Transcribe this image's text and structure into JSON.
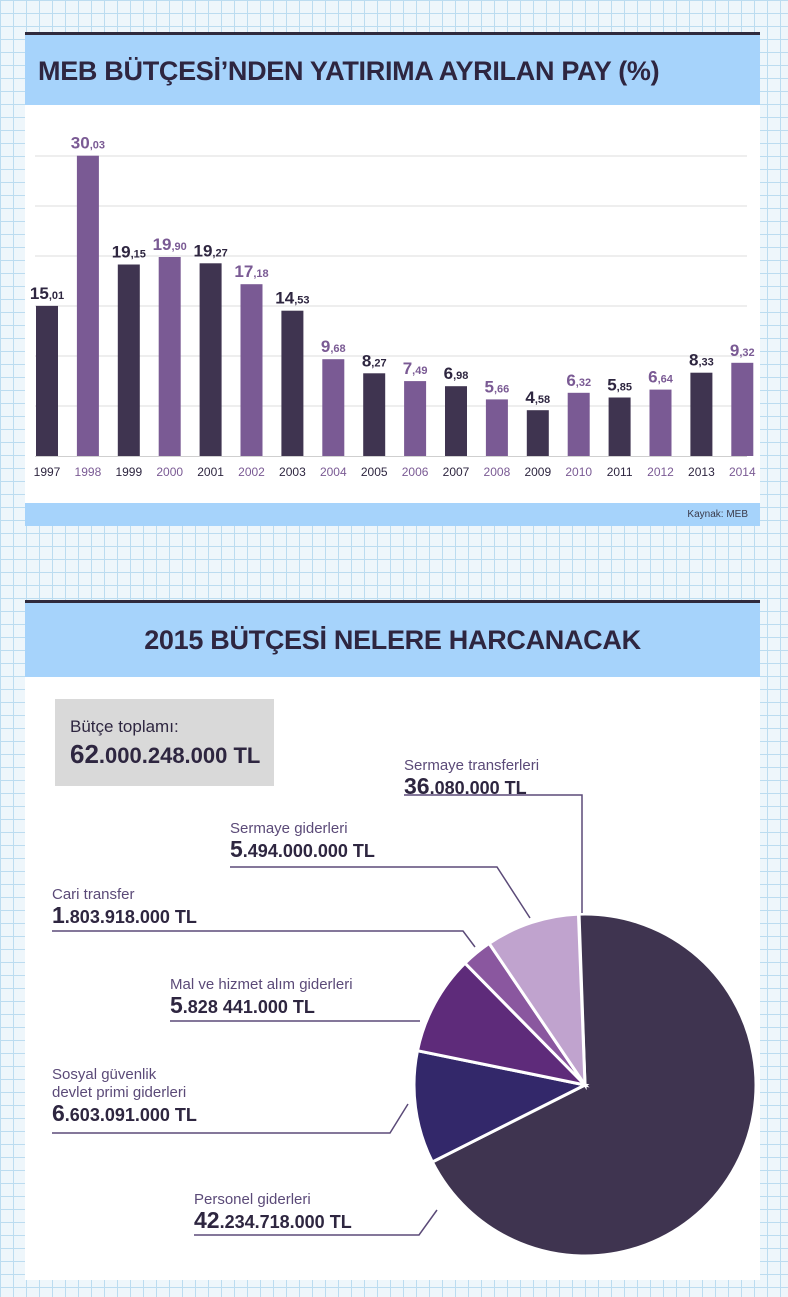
{
  "charts": {
    "bar": {
      "title": "MEB BÜTÇESİ’NDEN YATIRIMA AYRILAN PAY (%)",
      "source": "Kaynak: MEB"
    },
    "pie": {
      "title": "2015 BÜTÇESİ NELERE HARCANACAK",
      "total_label": "Bütçe toplamı:",
      "total_value": "62.000.248.000 TL"
    }
  },
  "chart_data": [
    {
      "type": "bar",
      "title": "MEB BÜTÇESİ’NDEN YATIRIMA AYRILAN PAY (%)",
      "categories": [
        "1997",
        "1998",
        "1999",
        "2000",
        "2001",
        "2002",
        "2003",
        "2004",
        "2005",
        "2006",
        "2007",
        "2008",
        "2009",
        "2010",
        "2011",
        "2012",
        "2013",
        "2014"
      ],
      "values": [
        15.01,
        30.03,
        19.15,
        19.9,
        19.27,
        17.18,
        14.53,
        9.68,
        8.27,
        7.49,
        6.98,
        5.66,
        4.58,
        6.32,
        5.85,
        6.64,
        8.33,
        9.32
      ],
      "labels": [
        "15,01",
        "30,03",
        "19,15",
        "19,90",
        "19,27",
        "17,18",
        "14,53",
        "9,68",
        "8,27",
        "7,49",
        "6,98",
        "5,66",
        "4,58",
        "6,32",
        "5,85",
        "6,64",
        "8,33",
        "9,32"
      ],
      "ylim": [
        0,
        30
      ],
      "grid": true,
      "colors": {
        "even": "#3f3450",
        "odd": "#7a5a94"
      },
      "tick_colors": {
        "even": "#2e2640",
        "odd": "#7a5a94"
      }
    },
    {
      "type": "pie",
      "title": "2015 BÜTÇESİ NELERE HARCANACAK",
      "slices": [
        {
          "name": "Personel giderleri",
          "value": 42234718000,
          "label": "42.234.718.000 TL",
          "color": "#3f3450"
        },
        {
          "name": "Sosyal güvenlik devlet primi giderleri",
          "value": 6603091000,
          "label": "6.603.091.000 TL",
          "color": "#33286a"
        },
        {
          "name": "Mal ve hizmet alım giderleri",
          "value": 5828441000,
          "label": "5.828 441.000 TL",
          "color": "#5e2b7a"
        },
        {
          "name": "Cari transfer",
          "value": 1803918000,
          "label": "1.803.918.000 TL",
          "color": "#8a579f"
        },
        {
          "name": "Sermaye giderleri",
          "value": 5494000000,
          "label": "5.494.000.000 TL",
          "color": "#c0a3ce"
        },
        {
          "name": "Sermaye transferleri",
          "value": 36080000,
          "label": "36.080.000 TL",
          "color": "#1a1624"
        }
      ]
    }
  ]
}
